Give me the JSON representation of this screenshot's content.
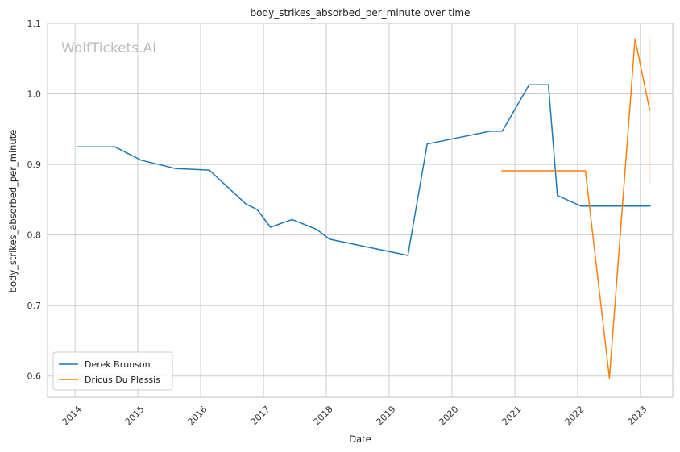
{
  "chart_data": {
    "type": "line",
    "title": "body_strikes_absorbed_per_minute over time",
    "xlabel": "Date",
    "ylabel": "body_strikes_absorbed_per_minute",
    "xlim": [
      "2013-07-25",
      "2023-07-08"
    ],
    "ylim": [
      0.57,
      1.1
    ],
    "x_ticks": [
      "2014",
      "2015",
      "2016",
      "2017",
      "2018",
      "2019",
      "2020",
      "2021",
      "2022",
      "2023"
    ],
    "y_ticks": [
      "0.6",
      "0.7",
      "0.8",
      "0.9",
      "1.0",
      "1.1"
    ],
    "grid": true,
    "legend_position": "lower-left",
    "watermark": "WolfTickets.AI",
    "series": [
      {
        "name": "Derek Brunson",
        "color": "#1f77b4",
        "points": [
          [
            "2014-01-15",
            0.925
          ],
          [
            "2014-08-20",
            0.925
          ],
          [
            "2015-01-20",
            0.906
          ],
          [
            "2015-08-10",
            0.894
          ],
          [
            "2016-02-20",
            0.892
          ],
          [
            "2016-09-20",
            0.844
          ],
          [
            "2016-11-25",
            0.836
          ],
          [
            "2017-02-10",
            0.811
          ],
          [
            "2017-06-15",
            0.822
          ],
          [
            "2017-11-05",
            0.808
          ],
          [
            "2018-01-20",
            0.794
          ],
          [
            "2019-04-20",
            0.771
          ],
          [
            "2019-08-10",
            0.929
          ],
          [
            "2020-08-10",
            0.947
          ],
          [
            "2020-10-20",
            0.947
          ],
          [
            "2021-03-25",
            1.013
          ],
          [
            "2021-07-15",
            1.013
          ],
          [
            "2021-09-05",
            0.856
          ],
          [
            "2022-01-20",
            0.841
          ],
          [
            "2023-03-01",
            0.841
          ]
        ]
      },
      {
        "name": "Dricus Du Plessis",
        "color": "#ff7f0e",
        "points": [
          [
            "2020-10-15",
            0.891
          ],
          [
            "2022-02-15",
            0.891
          ],
          [
            "2022-07-05",
            0.597
          ],
          [
            "2022-12-01",
            1.078
          ],
          [
            "2023-02-25",
            0.976
          ]
        ],
        "error_band": {
          "date": "2023-02-25",
          "low": 0.872,
          "high": 1.08
        }
      }
    ]
  }
}
